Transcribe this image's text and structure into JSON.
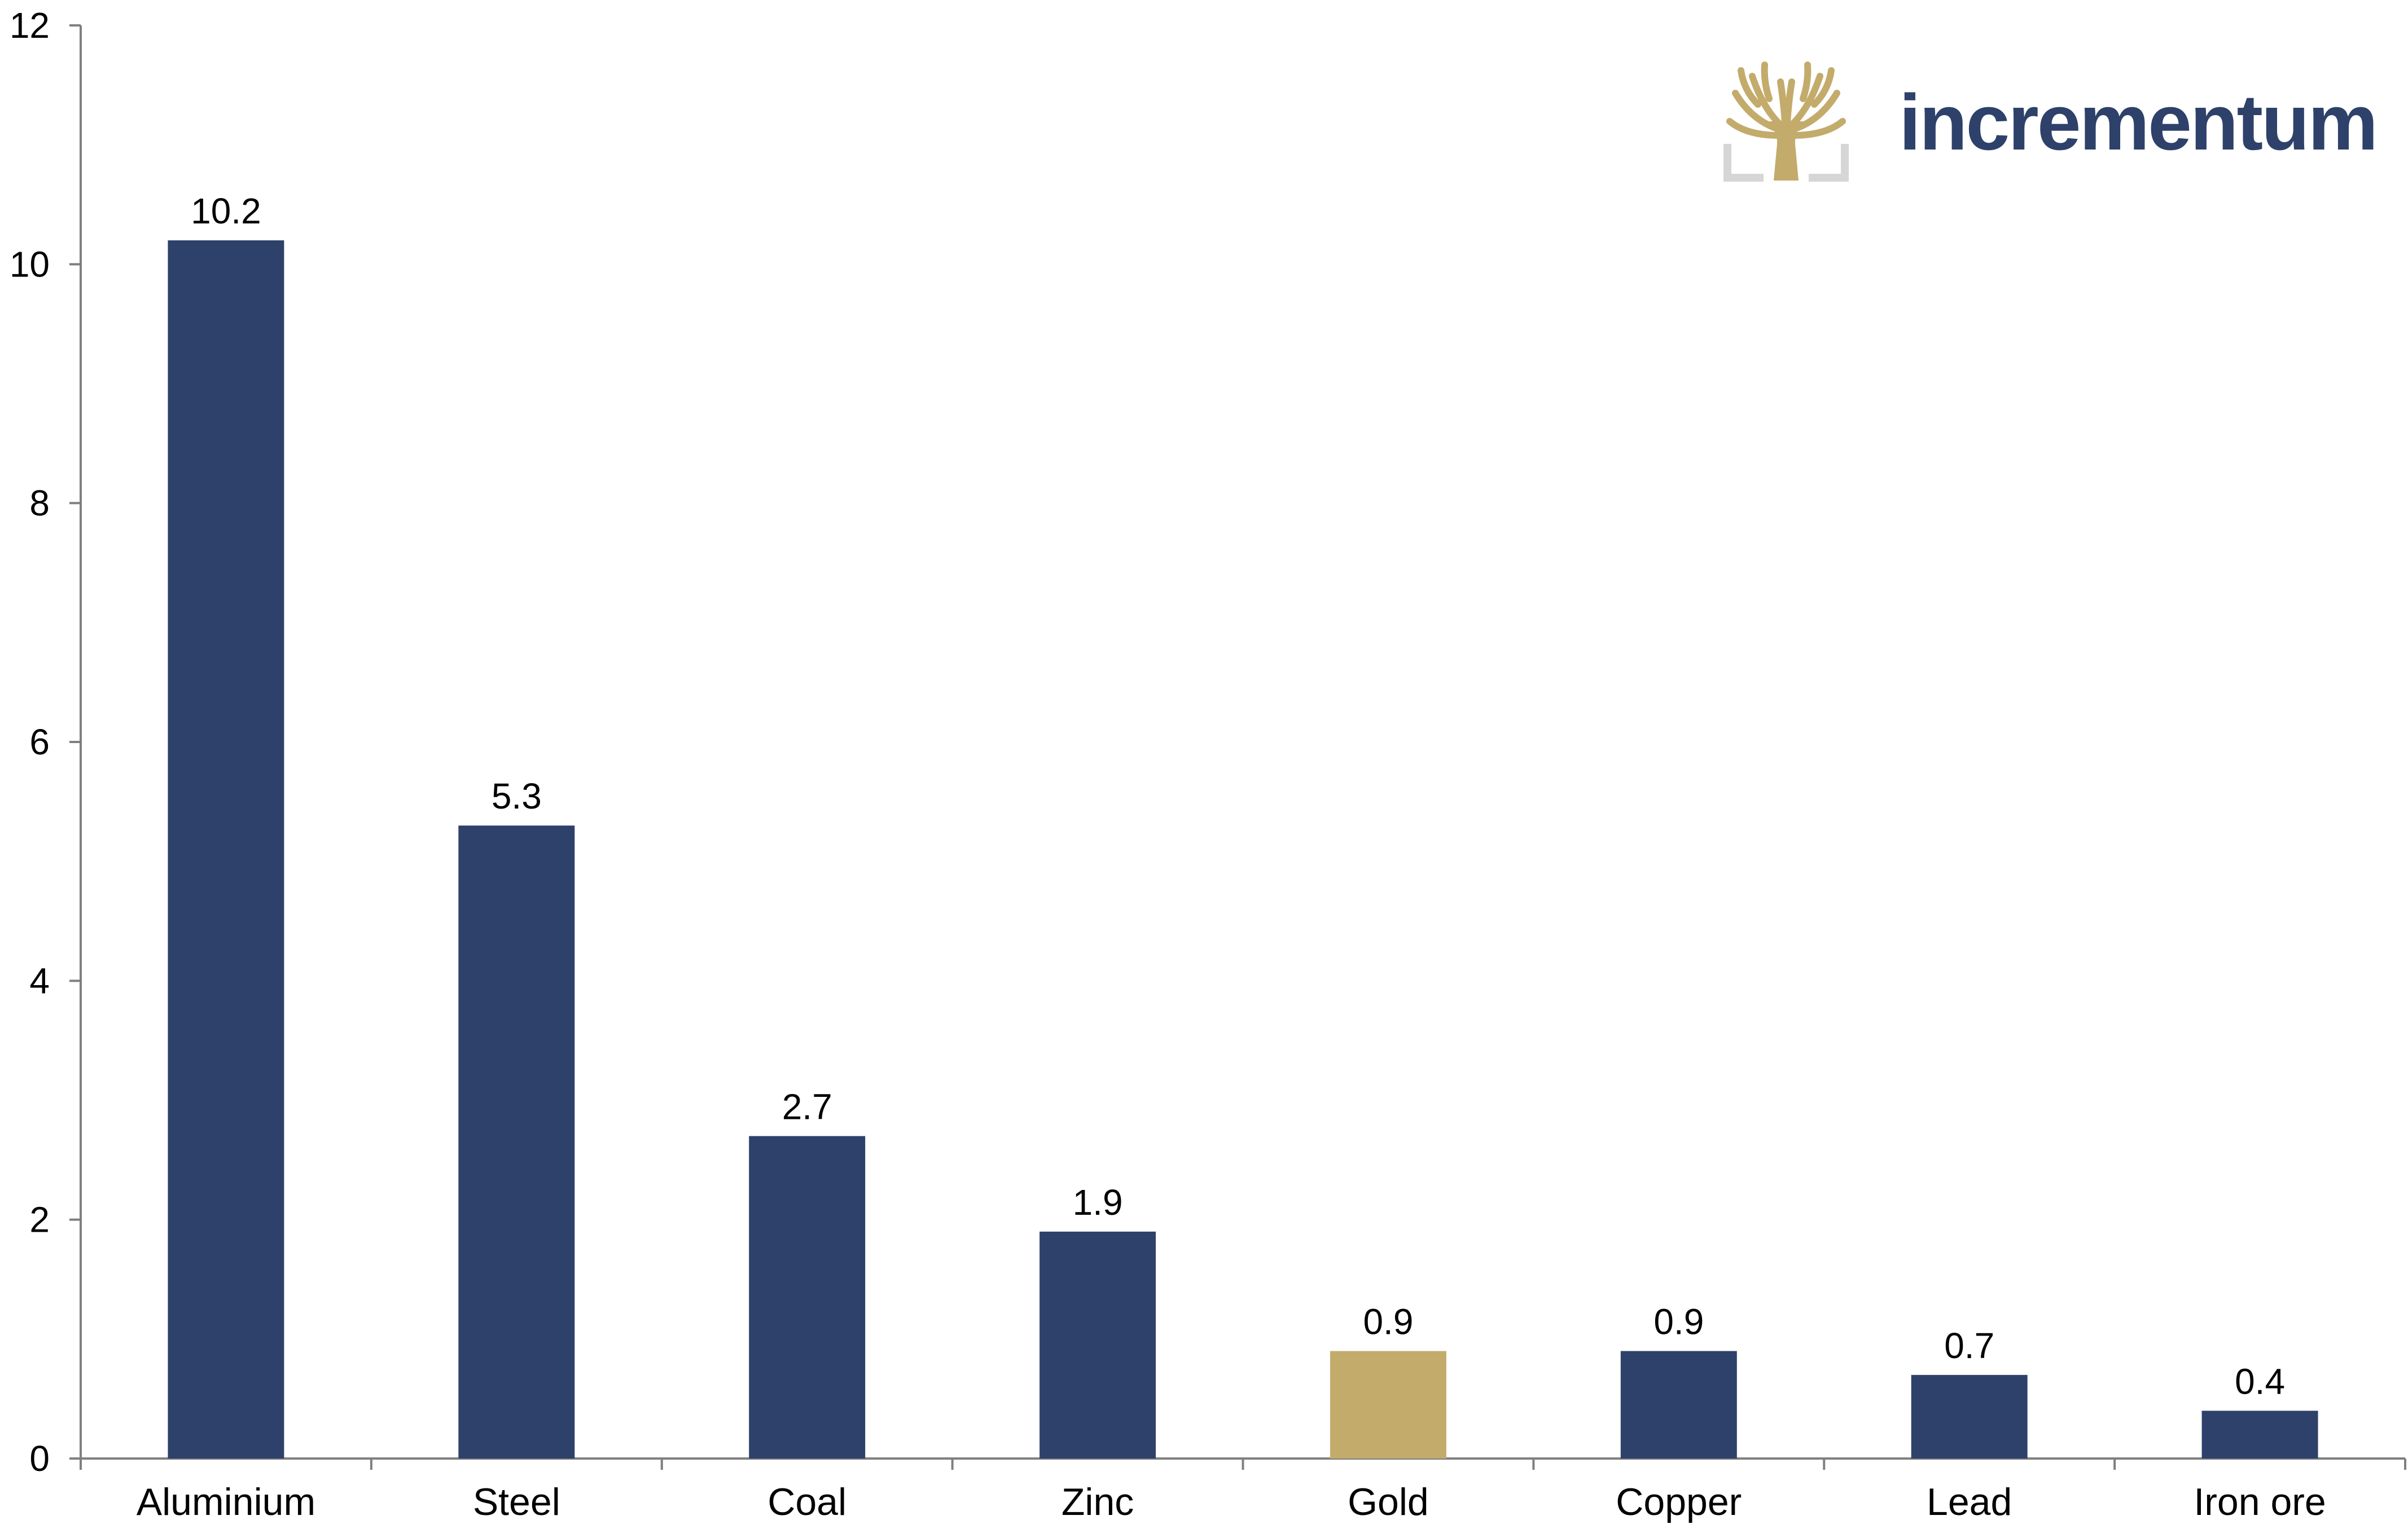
{
  "chart_data": {
    "type": "bar",
    "categories": [
      "Aluminium",
      "Steel",
      "Coal",
      "Zinc",
      "Gold",
      "Copper",
      "Lead",
      "Iron ore"
    ],
    "values": [
      10.2,
      5.3,
      2.7,
      1.9,
      0.9,
      0.9,
      0.7,
      0.4
    ],
    "data_labels": [
      "10.2",
      "5.3",
      "2.7",
      "1.9",
      "0.9",
      "0.9",
      "0.7",
      "0.4"
    ],
    "highlight_category": "Gold",
    "ylim": [
      0,
      12
    ],
    "yticks": [
      0,
      2,
      4,
      6,
      8,
      10,
      12
    ],
    "title": "",
    "xlabel": "",
    "ylabel": "",
    "grid": false,
    "legend": "none"
  },
  "colors": {
    "bar": "#2e416a",
    "highlight": "#c3ab6c",
    "logo_text": "#2e416a",
    "logo_tree": "#c3ab6c",
    "logo_frame": "#d6d6d6"
  },
  "logo": {
    "text": "incrementum",
    "icon": "tree-logo-icon"
  }
}
